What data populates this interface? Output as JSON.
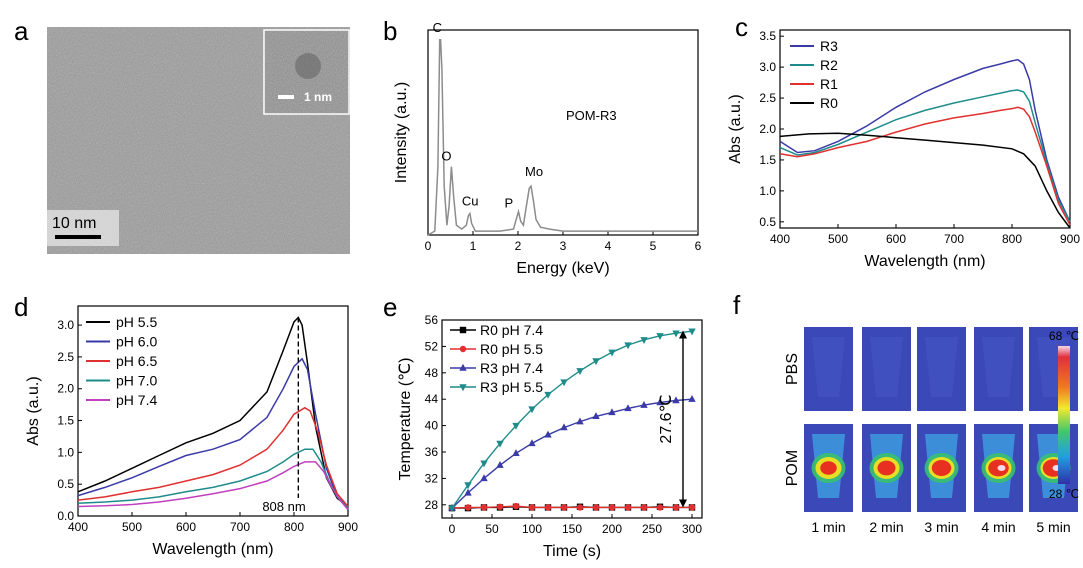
{
  "chart_data": [
    {
      "panel": "a",
      "type": "image",
      "scale_bar": "10 nm",
      "inset_scale_bar": "1 nm"
    },
    {
      "panel": "b",
      "type": "line",
      "xlabel": "Energy (keV)",
      "ylabel": "Intensity (a.u.)",
      "xlim": [
        0,
        6
      ],
      "xticks": [
        0,
        1,
        2,
        3,
        4,
        5,
        6
      ],
      "annotation": "POM-R3",
      "peaks": [
        {
          "label": "C",
          "x": 0.28
        },
        {
          "label": "O",
          "x": 0.52
        },
        {
          "label": "Cu",
          "x": 0.93
        },
        {
          "label": "P",
          "x": 2.01
        },
        {
          "label": "Mo",
          "x": 2.29
        }
      ],
      "series": [
        {
          "color": "#8c8c8c",
          "x": [
            0,
            0.15,
            0.22,
            0.26,
            0.28,
            0.31,
            0.36,
            0.42,
            0.47,
            0.52,
            0.57,
            0.63,
            0.75,
            0.85,
            0.9,
            0.93,
            0.97,
            1.05,
            1.3,
            1.6,
            1.9,
            1.96,
            2.01,
            2.06,
            2.12,
            2.18,
            2.25,
            2.29,
            2.34,
            2.4,
            2.5,
            2.7,
            3.0,
            3.5,
            4.0,
            4.5,
            5.0,
            5.5,
            6.0
          ],
          "y": [
            0.0,
            0.02,
            0.35,
            1.0,
            1.0,
            0.85,
            0.25,
            0.05,
            0.15,
            0.35,
            0.2,
            0.05,
            0.03,
            0.05,
            0.1,
            0.11,
            0.06,
            0.02,
            0.02,
            0.02,
            0.03,
            0.08,
            0.12,
            0.07,
            0.05,
            0.14,
            0.24,
            0.25,
            0.18,
            0.08,
            0.04,
            0.03,
            0.02,
            0.02,
            0.02,
            0.02,
            0.02,
            0.02,
            0.02
          ]
        }
      ]
    },
    {
      "panel": "c",
      "type": "line",
      "xlabel": "Wavelength (nm)",
      "ylabel": "Abs (a.u.)",
      "xlim": [
        400,
        900
      ],
      "ylim": [
        0.4,
        3.6
      ],
      "xticks": [
        400,
        500,
        600,
        700,
        800,
        900
      ],
      "yticks": [
        0.5,
        1.0,
        1.5,
        2.0,
        2.5,
        3.0,
        3.5
      ],
      "legend": "top-left",
      "series": [
        {
          "name": "R3",
          "color": "#3a3aa8",
          "x": [
            400,
            430,
            460,
            500,
            550,
            600,
            650,
            700,
            750,
            780,
            800,
            810,
            820,
            830,
            840,
            860,
            880,
            900
          ],
          "y": [
            1.8,
            1.62,
            1.65,
            1.8,
            2.05,
            2.35,
            2.6,
            2.8,
            2.98,
            3.05,
            3.1,
            3.12,
            3.05,
            2.8,
            2.3,
            1.5,
            0.9,
            0.5
          ]
        },
        {
          "name": "R2",
          "color": "#1f8c8c",
          "x": [
            400,
            430,
            460,
            500,
            550,
            600,
            650,
            700,
            750,
            780,
            800,
            810,
            820,
            830,
            840,
            860,
            880,
            900
          ],
          "y": [
            1.7,
            1.58,
            1.62,
            1.75,
            1.95,
            2.15,
            2.3,
            2.42,
            2.52,
            2.58,
            2.62,
            2.63,
            2.6,
            2.45,
            2.1,
            1.45,
            0.85,
            0.5
          ]
        },
        {
          "name": "R1",
          "color": "#e03030",
          "x": [
            400,
            430,
            460,
            500,
            550,
            600,
            650,
            700,
            750,
            780,
            800,
            810,
            820,
            830,
            840,
            860,
            880,
            900
          ],
          "y": [
            1.6,
            1.55,
            1.6,
            1.7,
            1.8,
            1.95,
            2.08,
            2.18,
            2.25,
            2.3,
            2.33,
            2.35,
            2.32,
            2.2,
            1.95,
            1.4,
            0.8,
            0.45
          ]
        },
        {
          "name": "R0",
          "color": "#000000",
          "x": [
            400,
            450,
            500,
            550,
            600,
            650,
            700,
            750,
            800,
            820,
            840,
            860,
            880,
            900
          ],
          "y": [
            1.88,
            1.92,
            1.93,
            1.9,
            1.86,
            1.82,
            1.78,
            1.74,
            1.68,
            1.6,
            1.4,
            1.0,
            0.65,
            0.4
          ]
        }
      ]
    },
    {
      "panel": "d",
      "type": "line",
      "xlabel": "Wavelength (nm)",
      "ylabel": "Abs (a.u.)",
      "xlim": [
        400,
        900
      ],
      "ylim": [
        0,
        3.3
      ],
      "xticks": [
        400,
        500,
        600,
        700,
        800,
        900
      ],
      "yticks": [
        0.0,
        0.5,
        1.0,
        1.5,
        2.0,
        2.5,
        3.0
      ],
      "legend": "top-left",
      "annotation": "808 nm",
      "marker_x": 808,
      "series": [
        {
          "name": "pH 5.5",
          "color": "#000000",
          "x": [
            400,
            450,
            500,
            550,
            600,
            650,
            700,
            750,
            780,
            800,
            808,
            815,
            825,
            840,
            860,
            880,
            900
          ],
          "y": [
            0.38,
            0.55,
            0.75,
            0.95,
            1.15,
            1.3,
            1.5,
            1.95,
            2.6,
            3.05,
            3.12,
            3.0,
            2.4,
            1.4,
            0.6,
            0.28,
            0.15
          ]
        },
        {
          "name": "pH 6.0",
          "color": "#3a3aa8",
          "x": [
            400,
            450,
            500,
            550,
            600,
            650,
            700,
            750,
            780,
            800,
            815,
            825,
            840,
            860,
            880,
            900
          ],
          "y": [
            0.32,
            0.45,
            0.6,
            0.78,
            0.95,
            1.05,
            1.2,
            1.55,
            2.0,
            2.35,
            2.47,
            2.3,
            1.6,
            0.75,
            0.3,
            0.15
          ]
        },
        {
          "name": "pH 6.5",
          "color": "#e03030",
          "x": [
            400,
            450,
            500,
            550,
            600,
            650,
            700,
            750,
            780,
            800,
            820,
            830,
            845,
            860,
            880,
            900
          ],
          "y": [
            0.25,
            0.3,
            0.38,
            0.45,
            0.55,
            0.65,
            0.8,
            1.05,
            1.35,
            1.6,
            1.7,
            1.65,
            1.3,
            0.8,
            0.35,
            0.15
          ]
        },
        {
          "name": "pH 7.0",
          "color": "#1f8c8c",
          "x": [
            400,
            450,
            500,
            550,
            600,
            650,
            700,
            750,
            780,
            800,
            820,
            835,
            850,
            865,
            880,
            900
          ],
          "y": [
            0.2,
            0.22,
            0.25,
            0.3,
            0.38,
            0.45,
            0.55,
            0.7,
            0.85,
            0.97,
            1.05,
            1.05,
            0.85,
            0.55,
            0.3,
            0.12
          ]
        },
        {
          "name": "pH 7.4",
          "color": "#c040c0",
          "x": [
            400,
            450,
            500,
            550,
            600,
            650,
            700,
            750,
            780,
            800,
            820,
            840,
            855,
            870,
            885,
            900
          ],
          "y": [
            0.15,
            0.16,
            0.18,
            0.22,
            0.28,
            0.35,
            0.43,
            0.55,
            0.68,
            0.78,
            0.85,
            0.85,
            0.7,
            0.45,
            0.25,
            0.1
          ]
        }
      ]
    },
    {
      "panel": "e",
      "type": "line",
      "xlabel": "Time (s)",
      "ylabel": "Temperature (℃)",
      "xlim": [
        0,
        300
      ],
      "ylim": [
        26,
        56
      ],
      "xticks": [
        0,
        50,
        100,
        150,
        200,
        250,
        300
      ],
      "yticks": [
        28,
        32,
        36,
        40,
        44,
        48,
        52,
        56
      ],
      "legend": "top-left",
      "annotation": "27.6℃",
      "series": [
        {
          "name": "R0 pH 7.4",
          "color": "#000000",
          "marker": "square",
          "x": [
            0,
            20,
            40,
            60,
            80,
            100,
            120,
            140,
            160,
            180,
            200,
            220,
            240,
            260,
            280,
            300
          ],
          "y": [
            27.5,
            27.5,
            27.6,
            27.6,
            27.7,
            27.6,
            27.6,
            27.6,
            27.7,
            27.6,
            27.6,
            27.6,
            27.6,
            27.7,
            27.6,
            27.6
          ]
        },
        {
          "name": "R0 pH 5.5",
          "color": "#e03030",
          "marker": "circle",
          "x": [
            0,
            20,
            40,
            60,
            80,
            100,
            120,
            140,
            160,
            180,
            200,
            220,
            240,
            260,
            280,
            300
          ],
          "y": [
            27.5,
            27.6,
            27.6,
            27.7,
            27.8,
            27.6,
            27.6,
            27.6,
            27.6,
            27.6,
            27.6,
            27.6,
            27.6,
            27.6,
            27.6,
            27.6
          ]
        },
        {
          "name": "R3 pH 7.4",
          "color": "#3a3aa8",
          "marker": "triangle-up",
          "x": [
            0,
            20,
            40,
            60,
            80,
            100,
            120,
            140,
            160,
            180,
            200,
            220,
            240,
            260,
            280,
            300
          ],
          "y": [
            27.5,
            29.8,
            32.0,
            34.0,
            35.8,
            37.3,
            38.6,
            39.7,
            40.6,
            41.4,
            42.0,
            42.6,
            43.1,
            43.5,
            43.8,
            44.0
          ]
        },
        {
          "name": "R3 pH 5.5",
          "color": "#1f8c8c",
          "marker": "triangle-down",
          "x": [
            0,
            20,
            40,
            60,
            80,
            100,
            120,
            140,
            160,
            180,
            200,
            220,
            240,
            260,
            280,
            300
          ],
          "y": [
            27.5,
            31.0,
            34.3,
            37.3,
            40.0,
            42.5,
            44.7,
            46.6,
            48.3,
            49.8,
            51.1,
            52.2,
            53.0,
            53.6,
            54.0,
            54.3
          ]
        }
      ]
    },
    {
      "panel": "f",
      "type": "image-grid",
      "row_labels": [
        "PBS",
        "POM"
      ],
      "column_labels": [
        "1 min",
        "2 min",
        "3 min",
        "4 min",
        "5 min"
      ],
      "colorbar_max": "68 ℃",
      "colorbar_min": "28 ℃",
      "pom_hotspot_levels": [
        0.45,
        0.6,
        0.75,
        0.85,
        0.95
      ]
    }
  ],
  "panel_labels": [
    "a",
    "b",
    "c",
    "d",
    "e",
    "f"
  ]
}
